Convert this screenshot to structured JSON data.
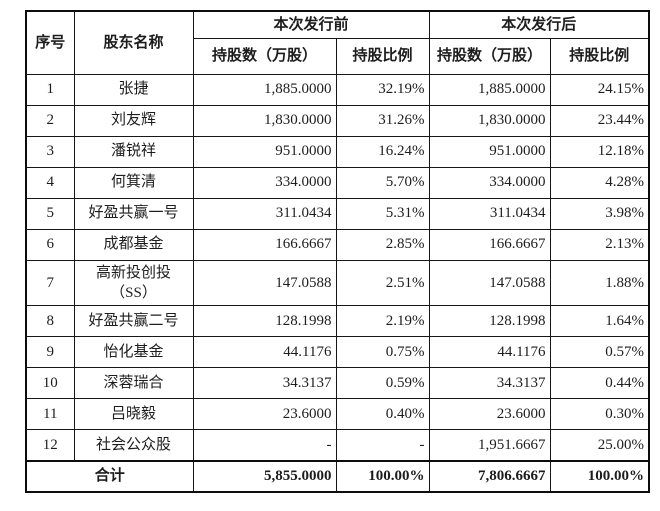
{
  "colors": {
    "background": "#ffffff",
    "text": "#1d1d1d",
    "border": "#0d0d0d"
  },
  "table": {
    "headers": {
      "serial": "序号",
      "shareholder": "股东名称",
      "pre_group": "本次发行前",
      "post_group": "本次发行后",
      "shares": "持股数（万股）",
      "ratio": "持股比例"
    },
    "rows": [
      {
        "no": "1",
        "name": "张捷",
        "pre_shares": "1,885.0000",
        "pre_ratio": "32.19%",
        "post_shares": "1,885.0000",
        "post_ratio": "24.15%"
      },
      {
        "no": "2",
        "name": "刘友辉",
        "pre_shares": "1,830.0000",
        "pre_ratio": "31.26%",
        "post_shares": "1,830.0000",
        "post_ratio": "23.44%"
      },
      {
        "no": "3",
        "name": "潘锐祥",
        "pre_shares": "951.0000",
        "pre_ratio": "16.24%",
        "post_shares": "951.0000",
        "post_ratio": "12.18%"
      },
      {
        "no": "4",
        "name": "何箕清",
        "pre_shares": "334.0000",
        "pre_ratio": "5.70%",
        "post_shares": "334.0000",
        "post_ratio": "4.28%"
      },
      {
        "no": "5",
        "name": "好盈共赢一号",
        "pre_shares": "311.0434",
        "pre_ratio": "5.31%",
        "post_shares": "311.0434",
        "post_ratio": "3.98%"
      },
      {
        "no": "6",
        "name": "成都基金",
        "pre_shares": "166.6667",
        "pre_ratio": "2.85%",
        "post_shares": "166.6667",
        "post_ratio": "2.13%"
      },
      {
        "no": "7",
        "name": "高新投创投\n（SS）",
        "pre_shares": "147.0588",
        "pre_ratio": "2.51%",
        "post_shares": "147.0588",
        "post_ratio": "1.88%"
      },
      {
        "no": "8",
        "name": "好盈共赢二号",
        "pre_shares": "128.1998",
        "pre_ratio": "2.19%",
        "post_shares": "128.1998",
        "post_ratio": "1.64%"
      },
      {
        "no": "9",
        "name": "怡化基金",
        "pre_shares": "44.1176",
        "pre_ratio": "0.75%",
        "post_shares": "44.1176",
        "post_ratio": "0.57%"
      },
      {
        "no": "10",
        "name": "深蓉瑞合",
        "pre_shares": "34.3137",
        "pre_ratio": "0.59%",
        "post_shares": "34.3137",
        "post_ratio": "0.44%"
      },
      {
        "no": "11",
        "name": "吕晓毅",
        "pre_shares": "23.6000",
        "pre_ratio": "0.40%",
        "post_shares": "23.6000",
        "post_ratio": "0.30%"
      },
      {
        "no": "12",
        "name": "社会公众股",
        "pre_shares": "-",
        "pre_ratio": "-",
        "post_shares": "1,951.6667",
        "post_ratio": "25.00%"
      }
    ],
    "total": {
      "label": "合计",
      "pre_shares": "5,855.0000",
      "pre_ratio": "100.00%",
      "post_shares": "7,806.6667",
      "post_ratio": "100.00%"
    }
  }
}
